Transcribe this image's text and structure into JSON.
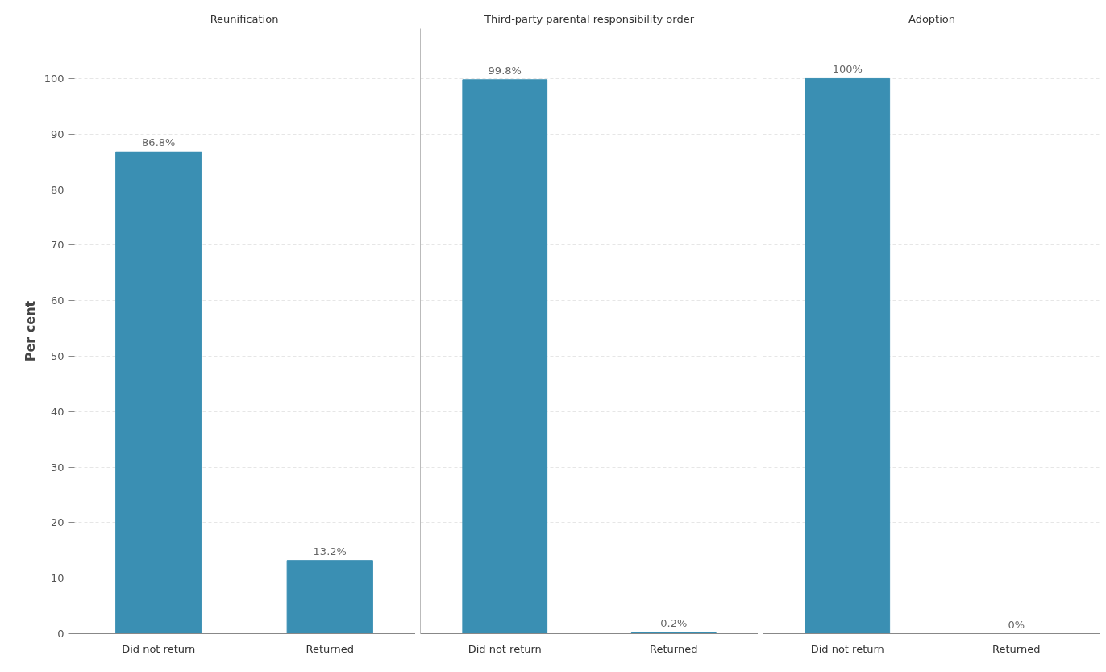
{
  "chart_data": [
    {
      "type": "bar",
      "title": "Reunification",
      "ylabel": "Per cent",
      "categories": [
        "Did not return",
        "Returned"
      ],
      "values": [
        86.8,
        13.2
      ],
      "value_labels": [
        "86.8%",
        "13.2%"
      ],
      "color": "#3a8fb3",
      "ylim": [
        0,
        109
      ],
      "yticks": [
        0,
        10,
        20,
        30,
        40,
        50,
        60,
        70,
        80,
        90,
        100
      ],
      "grid": "y"
    },
    {
      "type": "bar",
      "title": "Third-party parental responsibility order",
      "categories": [
        "Did not return",
        "Returned"
      ],
      "values": [
        99.8,
        0.2
      ],
      "value_labels": [
        "99.8%",
        "0.2%"
      ],
      "color": "#3a8fb3",
      "ylim": [
        0,
        109
      ],
      "yticks": [
        0,
        10,
        20,
        30,
        40,
        50,
        60,
        70,
        80,
        90,
        100
      ],
      "grid": "y",
      "tick_labels": "x"
    },
    {
      "type": "bar",
      "title": "Adoption",
      "categories": [
        "Did not return",
        "Returned"
      ],
      "values": [
        100,
        0
      ],
      "value_labels": [
        "100%",
        "0%"
      ],
      "color": "#3a8fb3",
      "ylim": [
        0,
        109
      ],
      "yticks": [
        0,
        10,
        20,
        30,
        40,
        50,
        60,
        70,
        80,
        90,
        100
      ],
      "grid": "y",
      "tick_labels": "x"
    }
  ]
}
